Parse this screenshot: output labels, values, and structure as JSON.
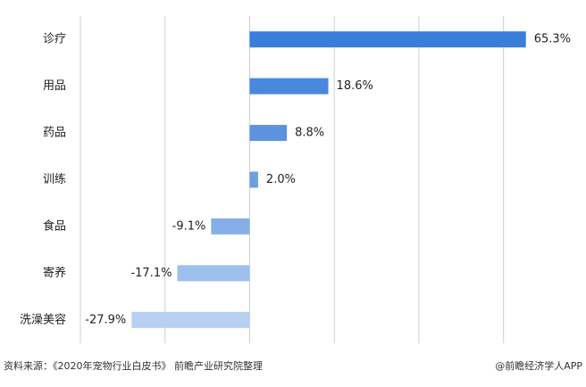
{
  "chart_data": {
    "type": "bar",
    "orientation": "horizontal",
    "categories": [
      "诊疗",
      "用品",
      "药品",
      "训练",
      "食品",
      "寄养",
      "洗澡美容"
    ],
    "values": [
      65.3,
      18.6,
      8.8,
      2.0,
      -9.1,
      -17.1,
      -27.9
    ],
    "value_labels": [
      "65.3%",
      "18.6%",
      "8.8%",
      "2.0%",
      "-9.1%",
      "-17.1%",
      "-27.9%"
    ],
    "colors": [
      "#3a7edb",
      "#4a88de",
      "#5b93e1",
      "#6c9ee4",
      "#85afe8",
      "#9dc0ec",
      "#b5d0f1"
    ],
    "xlim": [
      -40,
      70
    ],
    "xticks": [
      -40,
      -20,
      0,
      20,
      40,
      60
    ],
    "grid": true,
    "source": "资料来源：《2020年宠物行业白皮书》 前瞻产业研究院整理",
    "brand": "@前瞻经济学人APP"
  }
}
